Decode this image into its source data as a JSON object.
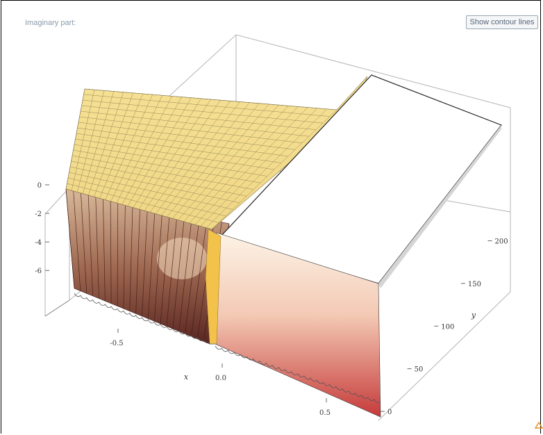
{
  "panel": {
    "label": "Imaginary part:",
    "toggle_button": "Show contour lines"
  },
  "colors": {
    "surface_top": "#f2dd86",
    "surface_wall_dark": "#5a2520",
    "surface_wall_light": "#f6e6c8",
    "surface_right_front_top": "#fdf3e6",
    "surface_right_front_bottom": "#c63a3a",
    "box_edge": "#aaaaaa"
  },
  "chart_data": {
    "type": "surface3d",
    "title": "Imaginary part:",
    "xlabel": "x",
    "ylabel": "y",
    "zlabel": "",
    "x_range": [
      -0.75,
      0.75
    ],
    "y_range": [
      0,
      220
    ],
    "z_range": [
      -7.5,
      0
    ],
    "x_ticks": [
      "-0.5",
      "0.0",
      "0.5"
    ],
    "y_ticks": [
      "0",
      "50",
      "100",
      "150",
      "200"
    ],
    "z_ticks": [
      "0",
      "-2",
      "-4",
      "-6"
    ],
    "regions": [
      {
        "name": "x<0",
        "z_plateau": 0,
        "wall_to": -7.5
      },
      {
        "name": "x>0",
        "z_plateau": -3.14,
        "wall_to": -7.5
      }
    ]
  }
}
